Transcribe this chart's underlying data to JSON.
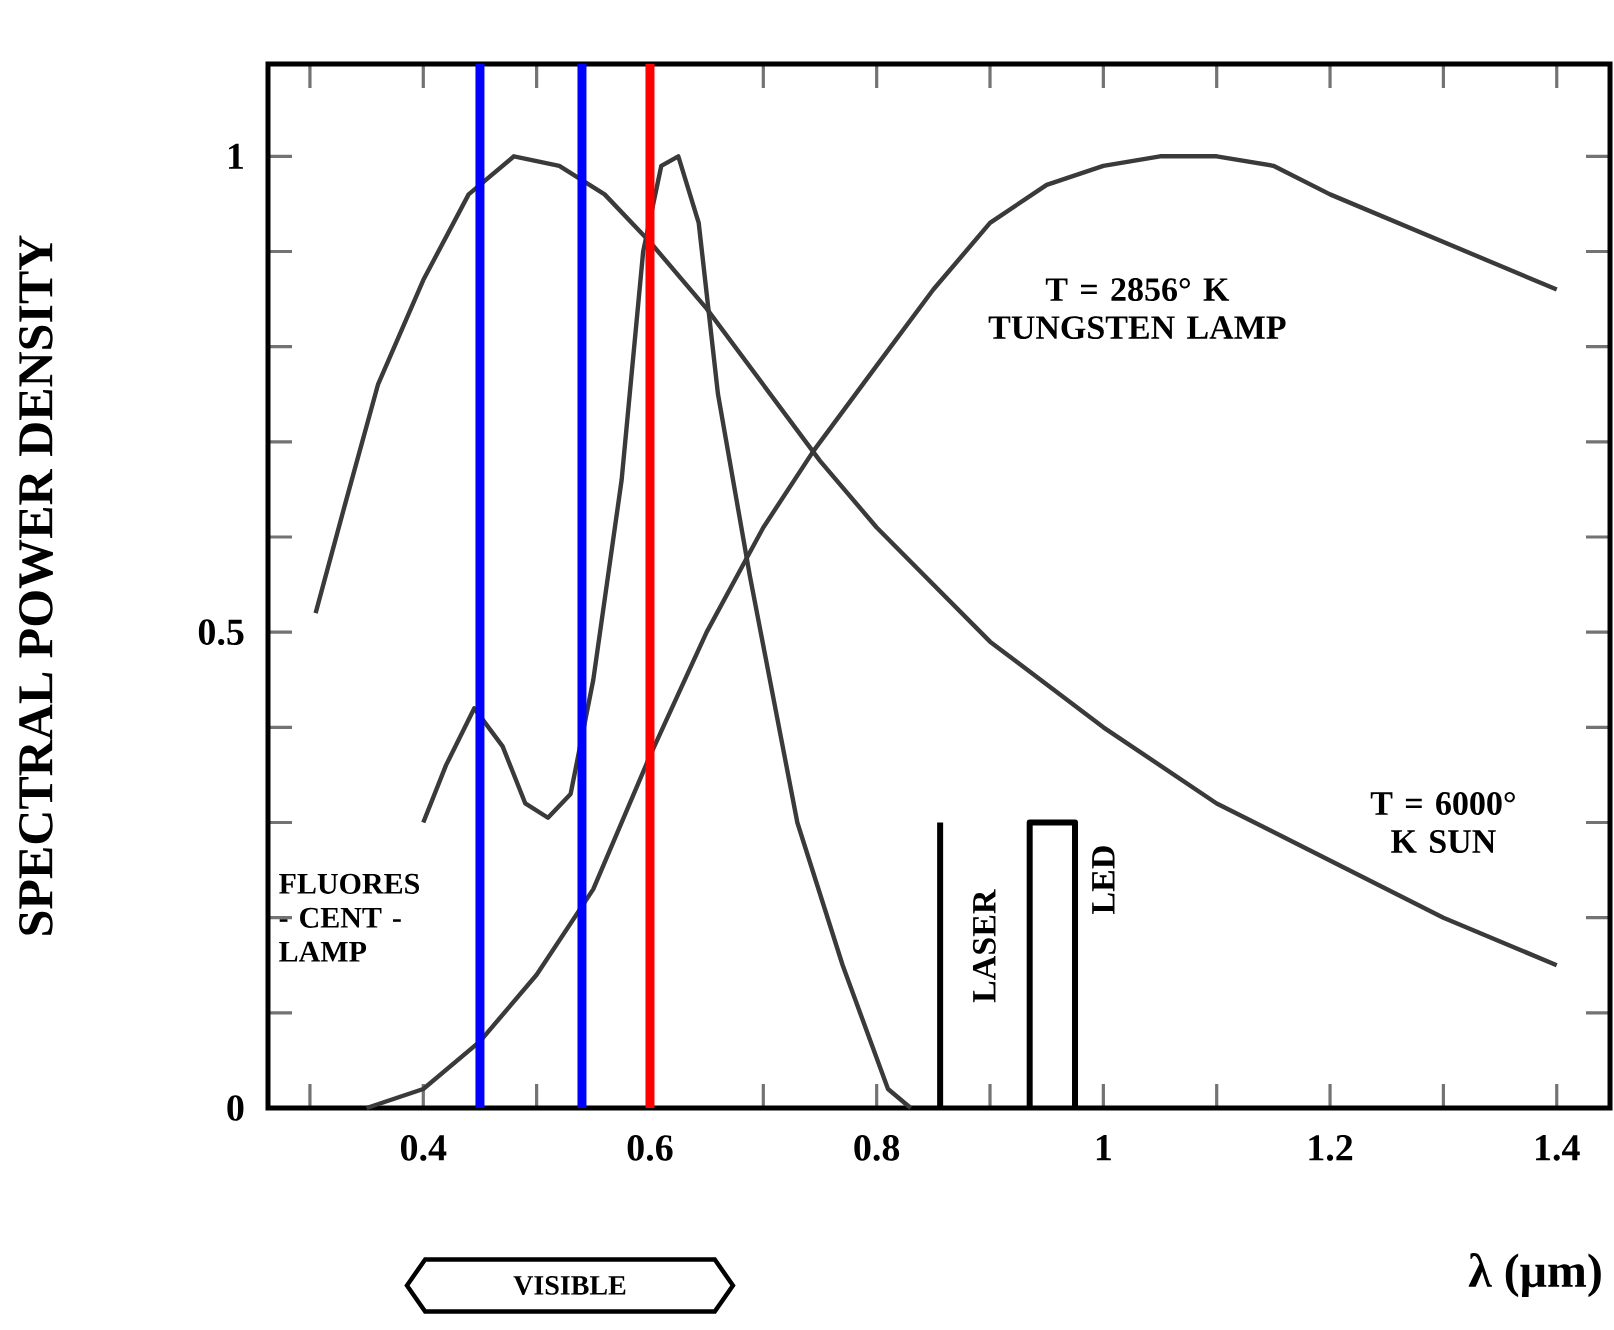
{
  "chart_data": {
    "type": "line",
    "xlabel": "λ (μm)",
    "ylabel": "SPECTRAL POWER DENSITY",
    "xlim": [
      0.263,
      1.447
    ],
    "ylim": [
      0,
      1.097
    ],
    "xticks": [
      {
        "value": 0.3,
        "label": null
      },
      0.4,
      {
        "value": 0.5,
        "label": null
      },
      0.6,
      {
        "value": 0.7,
        "label": null
      },
      0.8,
      {
        "value": 0.9,
        "label": null
      },
      1,
      {
        "value": 1.1,
        "label": null
      },
      1.2,
      {
        "value": 1.3,
        "label": null
      },
      1.4
    ],
    "yticks": [
      0,
      {
        "value": 0.1,
        "label": null
      },
      {
        "value": 0.2,
        "label": null
      },
      {
        "value": 0.3,
        "label": null
      },
      {
        "value": 0.4,
        "label": null
      },
      0.5,
      {
        "value": 0.6,
        "label": null
      },
      {
        "value": 0.7,
        "label": null
      },
      {
        "value": 0.8,
        "label": null
      },
      {
        "value": 0.9,
        "label": null
      },
      1
    ],
    "grid": false,
    "series": [
      {
        "name": "FLUORES - CENT - LAMP",
        "color": "#3a3a3a",
        "x": [
          0.4,
          0.42,
          0.445,
          0.47,
          0.49,
          0.51,
          0.53,
          0.55,
          0.575,
          0.594,
          0.61,
          0.625,
          0.643,
          0.66,
          0.688,
          0.73,
          0.77,
          0.81,
          0.83
        ],
        "values": [
          0.3,
          0.36,
          0.42,
          0.38,
          0.32,
          0.305,
          0.33,
          0.45,
          0.66,
          0.9,
          0.99,
          1.0,
          0.93,
          0.75,
          0.56,
          0.3,
          0.15,
          0.02,
          0
        ]
      },
      {
        "name": "T = 2856° K TUNGSTEN LAMP",
        "color": "#3a3a3a",
        "x": [
          0.35,
          0.4,
          0.45,
          0.5,
          0.55,
          0.6,
          0.65,
          0.7,
          0.744,
          0.8,
          0.85,
          0.9,
          0.95,
          1.0,
          1.05,
          1.1,
          1.15,
          1.2,
          1.3,
          1.4
        ],
        "values": [
          0,
          0.02,
          0.07,
          0.14,
          0.23,
          0.37,
          0.5,
          0.61,
          0.69,
          0.78,
          0.86,
          0.93,
          0.97,
          0.99,
          1.0,
          1.0,
          0.99,
          0.96,
          0.91,
          0.86
        ]
      },
      {
        "name": "T = 6000° K SUN",
        "color": "#3a3a3a",
        "x": [
          0.305,
          0.33,
          0.36,
          0.4,
          0.44,
          0.48,
          0.52,
          0.56,
          0.6,
          0.65,
          0.7,
          0.75,
          0.8,
          0.9,
          1.0,
          1.1,
          1.2,
          1.3,
          1.4
        ],
        "values": [
          0.52,
          0.63,
          0.76,
          0.87,
          0.96,
          1.0,
          0.99,
          0.96,
          0.91,
          0.84,
          0.76,
          0.68,
          0.61,
          0.49,
          0.4,
          0.32,
          0.26,
          0.2,
          0.15
        ]
      },
      {
        "name": "LASER",
        "color": "#000000",
        "x": [
          0.856,
          0.856
        ],
        "values": [
          0,
          0.3
        ]
      },
      {
        "name": "LED",
        "color": "#000000",
        "x": [
          0.935,
          0.935,
          0.975,
          0.975
        ],
        "values": [
          0,
          0.3,
          0.3,
          0
        ]
      }
    ],
    "ref_lines": [
      {
        "axis": "x",
        "value": 0.45,
        "color": "#0000ff"
      },
      {
        "axis": "x",
        "value": 0.54,
        "color": "#0000ff"
      },
      {
        "axis": "x",
        "value": 0.6,
        "color": "#ff0000"
      }
    ],
    "annotations": [
      "VISIBLE"
    ]
  }
}
